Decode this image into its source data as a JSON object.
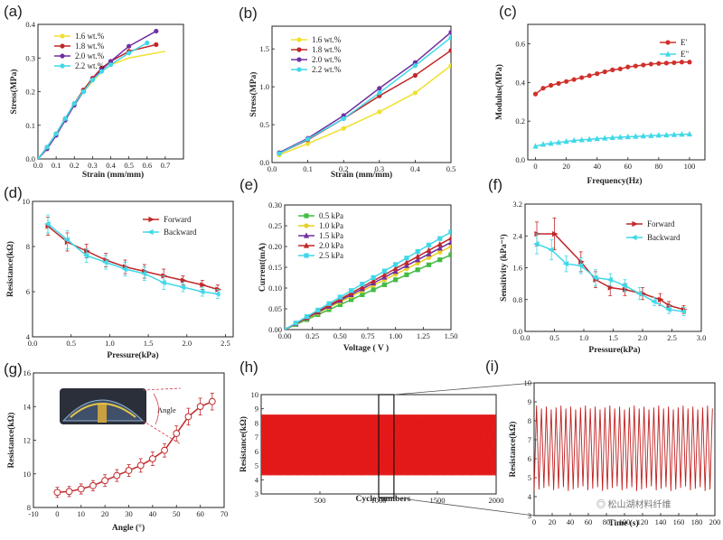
{
  "watermark": "◎ 松山湖材料纤维",
  "chart_data": [
    {
      "id": "a",
      "panel_label": "(a)",
      "type": "line",
      "xlabel": "Strain (mm/mm)",
      "ylabel": "Stress(MPa)",
      "xlim": [
        0,
        0.8
      ],
      "ylim": [
        0,
        0.4
      ],
      "xticks": [
        "0.0",
        "0.1",
        "0.2",
        "0.3",
        "0.4",
        "0.5",
        "0.6",
        "0.7"
      ],
      "yticks": [
        "0.0",
        "0.1",
        "0.2",
        "0.3",
        "0.4"
      ],
      "legend_position": "top-left",
      "series": [
        {
          "name": "1.6 wt.%",
          "color": "#f0e030",
          "marker": "none",
          "x": [
            0,
            0.05,
            0.1,
            0.15,
            0.2,
            0.25,
            0.3,
            0.35,
            0.4,
            0.5,
            0.6,
            0.7
          ],
          "y": [
            0,
            0.03,
            0.07,
            0.12,
            0.16,
            0.2,
            0.23,
            0.26,
            0.28,
            0.3,
            0.31,
            0.32
          ]
        },
        {
          "name": "1.8 wt.%",
          "color": "#c0282a",
          "marker": "circle",
          "x": [
            0,
            0.05,
            0.1,
            0.15,
            0.2,
            0.25,
            0.3,
            0.35,
            0.4,
            0.5,
            0.65
          ],
          "y": [
            0,
            0.035,
            0.075,
            0.12,
            0.165,
            0.205,
            0.24,
            0.27,
            0.29,
            0.32,
            0.34
          ]
        },
        {
          "name": "2.0 wt.%",
          "color": "#7030a0",
          "marker": "circle",
          "x": [
            0,
            0.05,
            0.1,
            0.15,
            0.2,
            0.25,
            0.3,
            0.35,
            0.4,
            0.5,
            0.65
          ],
          "y": [
            0,
            0.03,
            0.07,
            0.115,
            0.16,
            0.2,
            0.235,
            0.265,
            0.29,
            0.335,
            0.38
          ]
        },
        {
          "name": "2.2 wt.%",
          "color": "#40d8e8",
          "marker": "circle",
          "x": [
            0,
            0.05,
            0.1,
            0.15,
            0.2,
            0.25,
            0.3,
            0.35,
            0.4,
            0.5,
            0.6
          ],
          "y": [
            0,
            0.035,
            0.075,
            0.12,
            0.165,
            0.2,
            0.235,
            0.26,
            0.28,
            0.315,
            0.345
          ]
        }
      ]
    },
    {
      "id": "b",
      "panel_label": "(b)",
      "type": "line",
      "xlabel": "Strain (mm/mm)",
      "ylabel": "Stress(MPa)",
      "xlim": [
        0,
        0.5
      ],
      "ylim": [
        0,
        1.8
      ],
      "xticks": [
        "0.0",
        "0.1",
        "0.2",
        "0.3",
        "0.4",
        "0.5"
      ],
      "yticks": [
        "0.0",
        "0.5",
        "1.0",
        "1.5"
      ],
      "legend_position": "top-left",
      "series": [
        {
          "name": "1.6 wt.%",
          "color": "#f0e030",
          "marker": "circle",
          "x": [
            0.02,
            0.1,
            0.2,
            0.3,
            0.4,
            0.5
          ],
          "y": [
            0.1,
            0.25,
            0.45,
            0.67,
            0.92,
            1.28
          ]
        },
        {
          "name": "1.8 wt.%",
          "color": "#c0282a",
          "marker": "circle",
          "x": [
            0.02,
            0.1,
            0.2,
            0.3,
            0.4,
            0.5
          ],
          "y": [
            0.12,
            0.3,
            0.58,
            0.88,
            1.15,
            1.48
          ]
        },
        {
          "name": "2.0 wt.%",
          "color": "#7030a0",
          "marker": "circle",
          "x": [
            0.02,
            0.1,
            0.2,
            0.3,
            0.4,
            0.5
          ],
          "y": [
            0.13,
            0.32,
            0.62,
            0.98,
            1.32,
            1.72
          ]
        },
        {
          "name": "2.2 wt.%",
          "color": "#40d8e8",
          "marker": "circle",
          "x": [
            0.02,
            0.1,
            0.2,
            0.3,
            0.4,
            0.5
          ],
          "y": [
            0.12,
            0.31,
            0.58,
            0.92,
            1.28,
            1.65
          ]
        }
      ]
    },
    {
      "id": "c",
      "panel_label": "(c)",
      "type": "line",
      "xlabel": "Frequency(Hz)",
      "ylabel": "Modulus(MPa)",
      "xlim": [
        -5,
        110
      ],
      "ylim": [
        0,
        0.7
      ],
      "xticks": [
        "0",
        "20",
        "40",
        "60",
        "80",
        "100"
      ],
      "yticks": [
        "0.0",
        "0.2",
        "0.4",
        "0.6"
      ],
      "legend_position": "top-right",
      "series": [
        {
          "name": "E'",
          "color": "#d0302a",
          "marker": "circle",
          "x": [
            0,
            5,
            10,
            15,
            20,
            25,
            30,
            35,
            40,
            45,
            50,
            55,
            60,
            65,
            70,
            75,
            80,
            85,
            90,
            95,
            100
          ],
          "y": [
            0.34,
            0.37,
            0.385,
            0.395,
            0.405,
            0.415,
            0.425,
            0.435,
            0.445,
            0.455,
            0.465,
            0.47,
            0.48,
            0.485,
            0.49,
            0.495,
            0.498,
            0.5,
            0.502,
            0.505,
            0.505
          ]
        },
        {
          "name": "E\"",
          "color": "#40d8e8",
          "marker": "triangle",
          "x": [
            0,
            5,
            10,
            15,
            20,
            25,
            30,
            35,
            40,
            45,
            50,
            55,
            60,
            65,
            70,
            75,
            80,
            85,
            90,
            95,
            100
          ],
          "y": [
            0.07,
            0.08,
            0.085,
            0.09,
            0.095,
            0.1,
            0.103,
            0.106,
            0.109,
            0.112,
            0.115,
            0.117,
            0.119,
            0.121,
            0.123,
            0.125,
            0.127,
            0.128,
            0.13,
            0.132,
            0.133
          ]
        }
      ]
    },
    {
      "id": "d",
      "panel_label": "(d)",
      "type": "line",
      "xlabel": "Pressure(kPa)",
      "ylabel": "Resistance(kΩ)",
      "xlim": [
        0,
        2.6
      ],
      "ylim": [
        4,
        10
      ],
      "xticks": [
        "0.0",
        "0.5",
        "1.0",
        "1.5",
        "2.0",
        "2.5"
      ],
      "yticks": [
        "4",
        "6",
        "8",
        "10"
      ],
      "legend_position": "top-right",
      "series": [
        {
          "name": "Forward",
          "color": "#c0282a",
          "marker": "triangle-right",
          "x": [
            0.2,
            0.45,
            0.7,
            0.95,
            1.2,
            1.45,
            1.7,
            1.95,
            2.2,
            2.4
          ],
          "y": [
            8.9,
            8.2,
            7.8,
            7.4,
            7.1,
            6.9,
            6.7,
            6.5,
            6.3,
            6.1
          ],
          "err": [
            0.4,
            0.4,
            0.3,
            0.3,
            0.3,
            0.3,
            0.3,
            0.2,
            0.2,
            0.2
          ]
        },
        {
          "name": "Backward",
          "color": "#40d8e8",
          "marker": "triangle-left",
          "x": [
            0.2,
            0.45,
            0.7,
            0.95,
            1.2,
            1.45,
            1.7,
            1.95,
            2.2,
            2.4
          ],
          "y": [
            9.0,
            8.3,
            7.6,
            7.3,
            7.0,
            6.8,
            6.4,
            6.2,
            6.0,
            5.9
          ],
          "err": [
            0.4,
            0.4,
            0.3,
            0.3,
            0.3,
            0.3,
            0.3,
            0.2,
            0.2,
            0.2
          ]
        }
      ]
    },
    {
      "id": "e",
      "panel_label": "(e)",
      "type": "line",
      "xlabel": "Voltage ( V )",
      "ylabel": "Current(mA)",
      "xlim": [
        0,
        1.5
      ],
      "ylim": [
        0,
        0.3
      ],
      "xticks": [
        "0.00",
        "0.25",
        "0.50",
        "0.75",
        "1.00",
        "1.25",
        "1.50"
      ],
      "yticks": [
        "0.00",
        "0.05",
        "0.10",
        "0.15",
        "0.20",
        "0.25",
        "0.30"
      ],
      "legend_position": "top-left",
      "series": [
        {
          "name": "0.5 kPa",
          "color": "#44bb44",
          "marker": "square",
          "x": [
            0,
            0.1,
            0.2,
            0.3,
            0.4,
            0.5,
            0.6,
            0.7,
            0.8,
            0.9,
            1.0,
            1.1,
            1.2,
            1.3,
            1.4,
            1.5
          ],
          "y": [
            0,
            0.012,
            0.024,
            0.036,
            0.048,
            0.06,
            0.072,
            0.084,
            0.096,
            0.108,
            0.12,
            0.132,
            0.144,
            0.156,
            0.168,
            0.18
          ]
        },
        {
          "name": "1.0 kPa",
          "color": "#e8d020",
          "marker": "circle",
          "x": [
            0,
            0.1,
            0.2,
            0.3,
            0.4,
            0.5,
            0.6,
            0.7,
            0.8,
            0.9,
            1.0,
            1.1,
            1.2,
            1.3,
            1.4,
            1.5
          ],
          "y": [
            0,
            0.0133,
            0.0267,
            0.04,
            0.0533,
            0.0667,
            0.08,
            0.0933,
            0.1067,
            0.12,
            0.1333,
            0.1467,
            0.16,
            0.1733,
            0.1867,
            0.2
          ]
        },
        {
          "name": "1.5 kPa",
          "color": "#7030a0",
          "marker": "triangle",
          "x": [
            0,
            0.1,
            0.2,
            0.3,
            0.4,
            0.5,
            0.6,
            0.7,
            0.8,
            0.9,
            1.0,
            1.1,
            1.2,
            1.3,
            1.4,
            1.5
          ],
          "y": [
            0,
            0.014,
            0.028,
            0.042,
            0.056,
            0.07,
            0.084,
            0.098,
            0.112,
            0.126,
            0.14,
            0.154,
            0.168,
            0.182,
            0.196,
            0.21
          ]
        },
        {
          "name": "2.0 kPa",
          "color": "#c0282a",
          "marker": "triangle",
          "x": [
            0,
            0.1,
            0.2,
            0.3,
            0.4,
            0.5,
            0.6,
            0.7,
            0.8,
            0.9,
            1.0,
            1.1,
            1.2,
            1.3,
            1.4,
            1.5
          ],
          "y": [
            0,
            0.0147,
            0.0293,
            0.044,
            0.0587,
            0.0733,
            0.088,
            0.1027,
            0.1173,
            0.132,
            0.1467,
            0.1613,
            0.176,
            0.1907,
            0.2053,
            0.22
          ]
        },
        {
          "name": "2.5 kPa",
          "color": "#40d8e8",
          "marker": "square",
          "x": [
            0,
            0.1,
            0.2,
            0.3,
            0.4,
            0.5,
            0.6,
            0.7,
            0.8,
            0.9,
            1.0,
            1.1,
            1.2,
            1.3,
            1.4,
            1.5
          ],
          "y": [
            0,
            0.0157,
            0.0313,
            0.047,
            0.0627,
            0.0783,
            0.094,
            0.1097,
            0.1253,
            0.141,
            0.1567,
            0.1723,
            0.188,
            0.2037,
            0.2193,
            0.235
          ]
        }
      ]
    },
    {
      "id": "f",
      "panel_label": "(f)",
      "type": "line",
      "xlabel": "Pressure(kPa)",
      "ylabel": "Sensitivity (kPa⁻¹)",
      "xlim": [
        0,
        3.0
      ],
      "ylim": [
        0,
        3.2
      ],
      "xticks": [
        "0.0",
        "0.5",
        "1.0",
        "1.5",
        "2.0",
        "2.5",
        "3.0"
      ],
      "yticks": [
        "0.0",
        "0.8",
        "1.6",
        "2.4",
        "3.2"
      ],
      "legend_position": "top-right",
      "series": [
        {
          "name": "Forward",
          "color": "#c0282a",
          "marker": "triangle-right",
          "x": [
            0.2,
            0.5,
            0.95,
            1.2,
            1.45,
            1.7,
            2.0,
            2.3,
            2.45,
            2.7
          ],
          "y": [
            2.45,
            2.45,
            1.75,
            1.3,
            1.1,
            1.05,
            0.95,
            0.8,
            0.65,
            0.55
          ],
          "err": [
            0.3,
            0.4,
            0.25,
            0.2,
            0.2,
            0.15,
            0.15,
            0.15,
            0.1,
            0.1
          ]
        },
        {
          "name": "Backward",
          "color": "#40d8e8",
          "marker": "triangle-left",
          "x": [
            0.2,
            0.45,
            0.7,
            0.95,
            1.2,
            1.45,
            1.7,
            1.95,
            2.2,
            2.45,
            2.7
          ],
          "y": [
            2.2,
            2.05,
            1.7,
            1.65,
            1.35,
            1.3,
            1.15,
            0.95,
            0.75,
            0.55,
            0.5
          ],
          "err": [
            0.25,
            0.25,
            0.2,
            0.2,
            0.2,
            0.15,
            0.15,
            0.15,
            0.1,
            0.1,
            0.1
          ]
        }
      ]
    },
    {
      "id": "g",
      "panel_label": "(g)",
      "type": "line",
      "xlabel": "Angle (°)",
      "ylabel": "Resistance(kΩ)",
      "xlim": [
        -10,
        70
      ],
      "ylim": [
        8,
        16
      ],
      "xticks": [
        "-10",
        "0",
        "10",
        "20",
        "30",
        "40",
        "50",
        "60",
        "70"
      ],
      "yticks": [
        "8",
        "10",
        "12",
        "14",
        "16"
      ],
      "annotation": "Angle",
      "series": [
        {
          "name": "",
          "color": "#c0282a",
          "marker": "circle-open",
          "x": [
            0,
            5,
            10,
            15,
            20,
            25,
            30,
            35,
            40,
            45,
            50,
            55,
            60,
            65
          ],
          "y": [
            8.9,
            8.95,
            9.1,
            9.3,
            9.6,
            9.9,
            10.2,
            10.5,
            10.9,
            11.4,
            12.4,
            13.4,
            14.0,
            14.3
          ],
          "err": [
            0.3,
            0.3,
            0.3,
            0.3,
            0.35,
            0.35,
            0.35,
            0.4,
            0.4,
            0.4,
            0.45,
            0.5,
            0.5,
            0.5
          ]
        }
      ]
    },
    {
      "id": "h",
      "panel_label": "(h)",
      "type": "line",
      "xlabel": "Cycle numbers",
      "ylabel": "Resistance(kΩ)",
      "xlim": [
        0,
        2000
      ],
      "ylim": [
        3,
        10
      ],
      "xticks": [
        "500",
        "1000",
        "1500",
        "2000"
      ],
      "yticks": [
        "3",
        "4",
        "5",
        "6",
        "7",
        "8",
        "9",
        "10"
      ],
      "series": [
        {
          "name": "",
          "color": "#e41c1c",
          "pattern": "cyclic oscillation",
          "y_min": 4.3,
          "y_max": 8.6,
          "cycles": 2000
        }
      ]
    },
    {
      "id": "i",
      "panel_label": "(i)",
      "type": "line",
      "xlabel": "Time (s)",
      "ylabel": "Resistance(kΩ)",
      "xlim": [
        0,
        200
      ],
      "ylim": [
        3,
        10
      ],
      "xticks": [
        "0",
        "20",
        "40",
        "60",
        "80",
        "100",
        "120",
        "140",
        "160",
        "180",
        "200"
      ],
      "yticks": [
        "3",
        "4",
        "5",
        "6",
        "7",
        "8",
        "9",
        "10"
      ],
      "series": [
        {
          "name": "",
          "color": "#c02020",
          "pattern": "cyclic oscillation",
          "y_min": 4.3,
          "y_max": 8.8,
          "cycles": 37
        }
      ]
    }
  ]
}
